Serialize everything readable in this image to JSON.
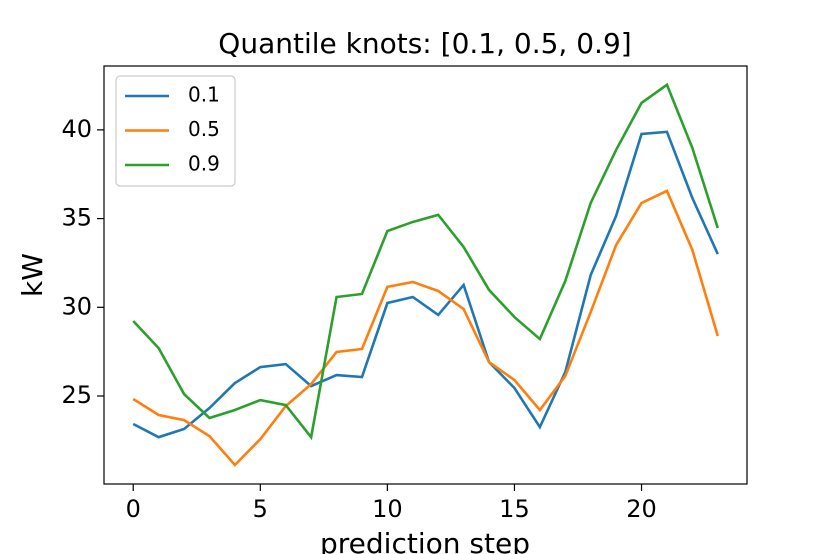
{
  "chart_data": {
    "type": "line",
    "title": "Quantile knots: [0.1, 0.5, 0.9]",
    "xlabel": "prediction step",
    "ylabel": "kW",
    "x": [
      0,
      1,
      2,
      3,
      4,
      5,
      6,
      7,
      8,
      9,
      10,
      11,
      12,
      13,
      14,
      15,
      16,
      17,
      18,
      19,
      20,
      21,
      22,
      23
    ],
    "series": [
      {
        "name": "0.1",
        "color": "#1f77b4",
        "values": [
          23.42,
          22.68,
          23.14,
          24.32,
          25.73,
          26.63,
          26.8,
          25.56,
          26.18,
          26.07,
          30.24,
          30.58,
          29.57,
          31.26,
          26.91,
          25.45,
          23.25,
          26.35,
          31.82,
          35.15,
          39.77,
          39.89,
          36.16,
          33.0
        ]
      },
      {
        "name": "0.5",
        "color": "#ff7f0e",
        "values": [
          24.83,
          23.93,
          23.64,
          22.74,
          21.11,
          22.57,
          24.43,
          25.67,
          27.48,
          27.65,
          31.15,
          31.43,
          30.92,
          29.9,
          26.91,
          25.9,
          24.21,
          26.13,
          29.73,
          33.51,
          35.88,
          36.56,
          33.23,
          28.38
        ]
      },
      {
        "name": "0.9",
        "color": "#2ca02c",
        "values": [
          29.23,
          27.7,
          25.11,
          23.76,
          24.21,
          24.77,
          24.49,
          22.68,
          30.58,
          30.75,
          34.3,
          34.81,
          35.21,
          33.4,
          30.98,
          29.45,
          28.21,
          31.48,
          35.88,
          38.87,
          41.52,
          42.54,
          38.98,
          34.47
        ]
      }
    ],
    "xlim": [
      -1.15,
      24.15
    ],
    "ylim": [
      20.04,
      43.6
    ],
    "xticks": [
      0,
      5,
      10,
      15,
      20
    ],
    "yticks": [
      25,
      30,
      35,
      40
    ],
    "legend": "upper left"
  }
}
